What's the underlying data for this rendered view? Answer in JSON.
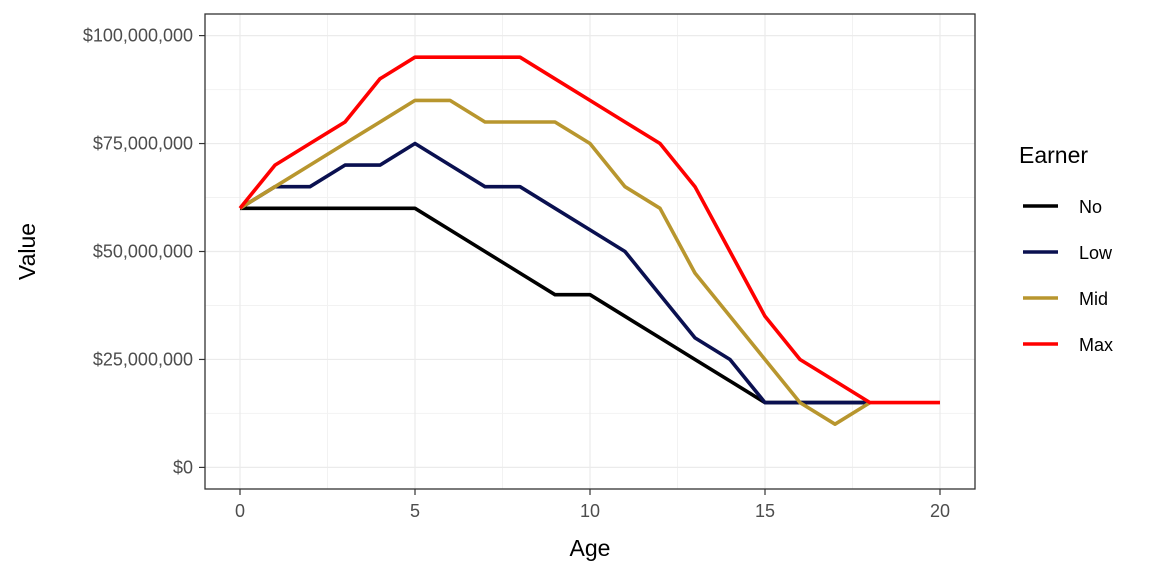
{
  "chart_data": {
    "type": "line",
    "xlabel": "Age",
    "ylabel": "Value",
    "xlim": [
      -1,
      21
    ],
    "ylim": [
      -5000000,
      105000000
    ],
    "x_ticks": [
      0,
      5,
      10,
      15,
      20
    ],
    "x_tick_labels": [
      "0",
      "5",
      "10",
      "15",
      "20"
    ],
    "y_ticks": [
      0,
      25000000,
      50000000,
      75000000,
      100000000
    ],
    "y_tick_labels": [
      "$0",
      "$25,000,000",
      "$50,000,000",
      "$75,000,000",
      "$100,000,000"
    ],
    "grid": true,
    "legend": {
      "title": "Earner",
      "position": "right"
    },
    "series": [
      {
        "name": "No",
        "color": "#000000",
        "x": [
          0,
          1,
          2,
          3,
          4,
          5,
          6,
          7,
          8,
          9,
          10,
          11,
          12,
          13,
          14,
          15,
          16,
          17,
          18
        ],
        "values": [
          60000000,
          60000000,
          60000000,
          60000000,
          60000000,
          60000000,
          55000000,
          50000000,
          45000000,
          40000000,
          40000000,
          35000000,
          30000000,
          25000000,
          20000000,
          15000000,
          15000000,
          15000000,
          15000000
        ]
      },
      {
        "name": "Low",
        "color": "#0a1050",
        "x": [
          0,
          1,
          2,
          3,
          4,
          5,
          6,
          7,
          8,
          9,
          10,
          11,
          12,
          13,
          14,
          15,
          16,
          17,
          18
        ],
        "values": [
          60000000,
          65000000,
          65000000,
          70000000,
          70000000,
          75000000,
          70000000,
          65000000,
          65000000,
          60000000,
          55000000,
          50000000,
          40000000,
          30000000,
          25000000,
          15000000,
          15000000,
          15000000,
          15000000
        ]
      },
      {
        "name": "Mid",
        "color": "#b8962e",
        "x": [
          0,
          1,
          2,
          3,
          4,
          5,
          6,
          7,
          8,
          9,
          10,
          11,
          12,
          13,
          14,
          15,
          16,
          17,
          18
        ],
        "values": [
          60000000,
          65000000,
          70000000,
          75000000,
          80000000,
          85000000,
          85000000,
          80000000,
          80000000,
          80000000,
          75000000,
          65000000,
          60000000,
          45000000,
          35000000,
          25000000,
          15000000,
          10000000,
          15000000
        ]
      },
      {
        "name": "Max",
        "color": "#ff0000",
        "x": [
          0,
          1,
          2,
          3,
          4,
          5,
          6,
          7,
          8,
          9,
          10,
          11,
          12,
          13,
          14,
          15,
          16,
          17,
          18,
          19,
          20
        ],
        "values": [
          60000000,
          70000000,
          75000000,
          80000000,
          90000000,
          95000000,
          95000000,
          95000000,
          95000000,
          90000000,
          85000000,
          80000000,
          75000000,
          65000000,
          50000000,
          35000000,
          25000000,
          20000000,
          15000000,
          15000000,
          15000000
        ]
      }
    ]
  }
}
